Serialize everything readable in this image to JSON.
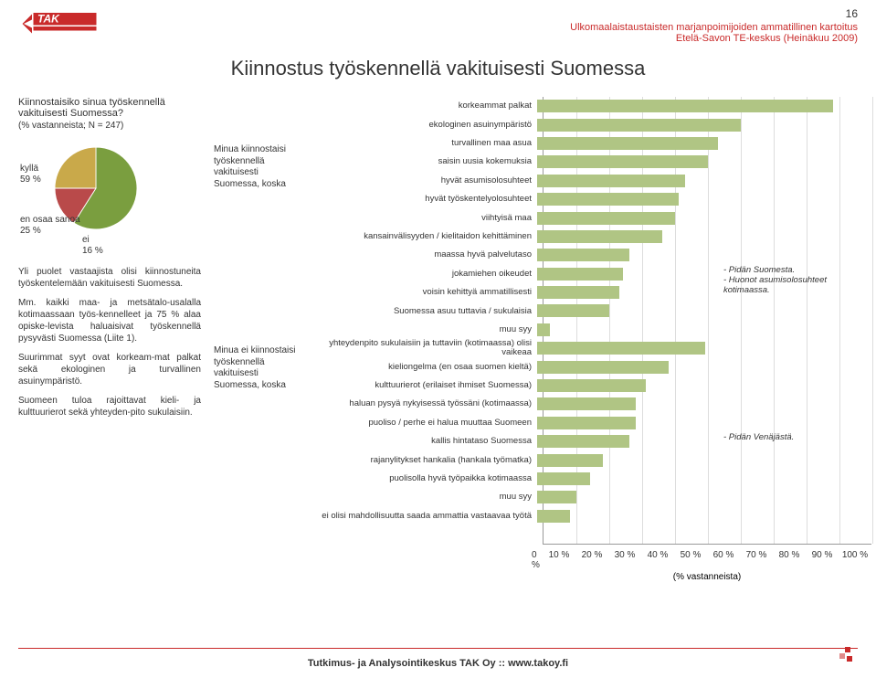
{
  "page_number": "16",
  "header": {
    "line1": "Ulkomaalaistaustaisten marjanpoimijoiden ammatillinen kartoitus",
    "line2": "Etelä-Savon TE-keskus (Heinäkuu 2009)"
  },
  "main_title": "Kiinnostus työskennellä vakituisesti Suomessa",
  "left": {
    "q_title": "Kiinnostaisiko sinua työskennellä vakituisesti Suomessa?",
    "q_sub": "(% vastanneista; N = 247)",
    "para1": "Yli puolet vastaajista olisi kiinnostuneita työskentelemään vakituisesti Suomessa.",
    "para2": "Mm. kaikki maa- ja metsätalo-usalalla kotimaassaan työs-kennelleet ja 75 % alaa opiske-levista haluaisivat työskennellä pysyvästi Suomessa (Liite 1).",
    "para3": "Suurimmat syyt ovat korkeam-mat palkat sekä ekologinen ja turvallinen asuinympäristö.",
    "para4": "Suomeen tuloa rajoittavat kieli- ja kulttuurierot sekä yhteyden-pito sukulaisiin."
  },
  "pie": {
    "slices": [
      {
        "label": "kyllä",
        "pct": "59 %",
        "value": 59,
        "color": "#7a9e3f"
      },
      {
        "label": "ei",
        "pct": "16 %",
        "value": 16,
        "color": "#b94a4a"
      },
      {
        "label": "en osaa sanoa",
        "pct": "25 %",
        "value": 25,
        "color": "#c9a94a"
      }
    ]
  },
  "mid": {
    "yes_label": "Minua kiinnostaisi työskennellä vakituisesti Suomessa, koska",
    "no_label": "Minua ei kiinnostaisi työskennellä vakituisesti Suomessa, koska"
  },
  "chart": {
    "type": "bar-horizontal",
    "x_unit": "%",
    "x_title": "(% vastanneista)",
    "xlim": [
      0,
      100
    ],
    "xtick_step": 10,
    "bar_color": "#b0c584",
    "grid_color": "#dddddd",
    "axis_color": "#999999",
    "label_fontsize": 9.5,
    "tick_fontsize": 10,
    "bars": [
      {
        "label": "korkeammat palkat",
        "value": 90
      },
      {
        "label": "ekologinen asuinympäristö",
        "value": 62
      },
      {
        "label": "turvallinen maa asua",
        "value": 55
      },
      {
        "label": "saisin uusia kokemuksia",
        "value": 52
      },
      {
        "label": "hyvät asumisolosuhteet",
        "value": 45
      },
      {
        "label": "hyvät työskentelyolosuhteet",
        "value": 43
      },
      {
        "label": "viihtyisä maa",
        "value": 42
      },
      {
        "label": "kansainvälisyyden / kielitaidon kehittäminen",
        "value": 38
      },
      {
        "label": "maassa hyvä palvelutaso",
        "value": 28
      },
      {
        "label": "jokamiehen oikeudet",
        "value": 26
      },
      {
        "label": "voisin kehittyä ammatillisesti",
        "value": 25
      },
      {
        "label": "Suomessa asuu tuttavia / sukulaisia",
        "value": 22
      },
      {
        "label": "muu syy",
        "value": 4
      },
      {
        "label": "yhteydenpito sukulaisiin ja tuttaviin (kotimaassa) olisi vaikeaa",
        "value": 51
      },
      {
        "label": "kieliongelma (en osaa suomen kieltä)",
        "value": 40
      },
      {
        "label": "kulttuurierot (erilaiset ihmiset Suomessa)",
        "value": 33
      },
      {
        "label": "haluan pysyä nykyisessä työssäni (kotimaassa)",
        "value": 30
      },
      {
        "label": "puoliso / perhe ei halua muuttaa Suomeen",
        "value": 30
      },
      {
        "label": "kallis hintataso Suomessa",
        "value": 28
      },
      {
        "label": "rajanylitykset hankalia (hankala työmatka)",
        "value": 20
      },
      {
        "label": "puolisolla hyvä työpaikka kotimaassa",
        "value": 16
      },
      {
        "label": "muu syy",
        "value": 12
      },
      {
        "label": "ei olisi mahdollisuutta saada ammattia vastaavaa työtä",
        "value": 10
      }
    ],
    "annotations": [
      {
        "text": "- Pidän Suomesta.\n- Huonot asumisolosuhteet kotimaassa.",
        "row": 9
      },
      {
        "text": "- Pidän Venäjästä.",
        "row": 18
      }
    ]
  },
  "footer": "Tutkimus- ja Analysointikeskus TAK Oy :: www.takoy.fi",
  "colors": {
    "brand_red": "#c92a2a",
    "text": "#333333",
    "background": "#ffffff"
  }
}
